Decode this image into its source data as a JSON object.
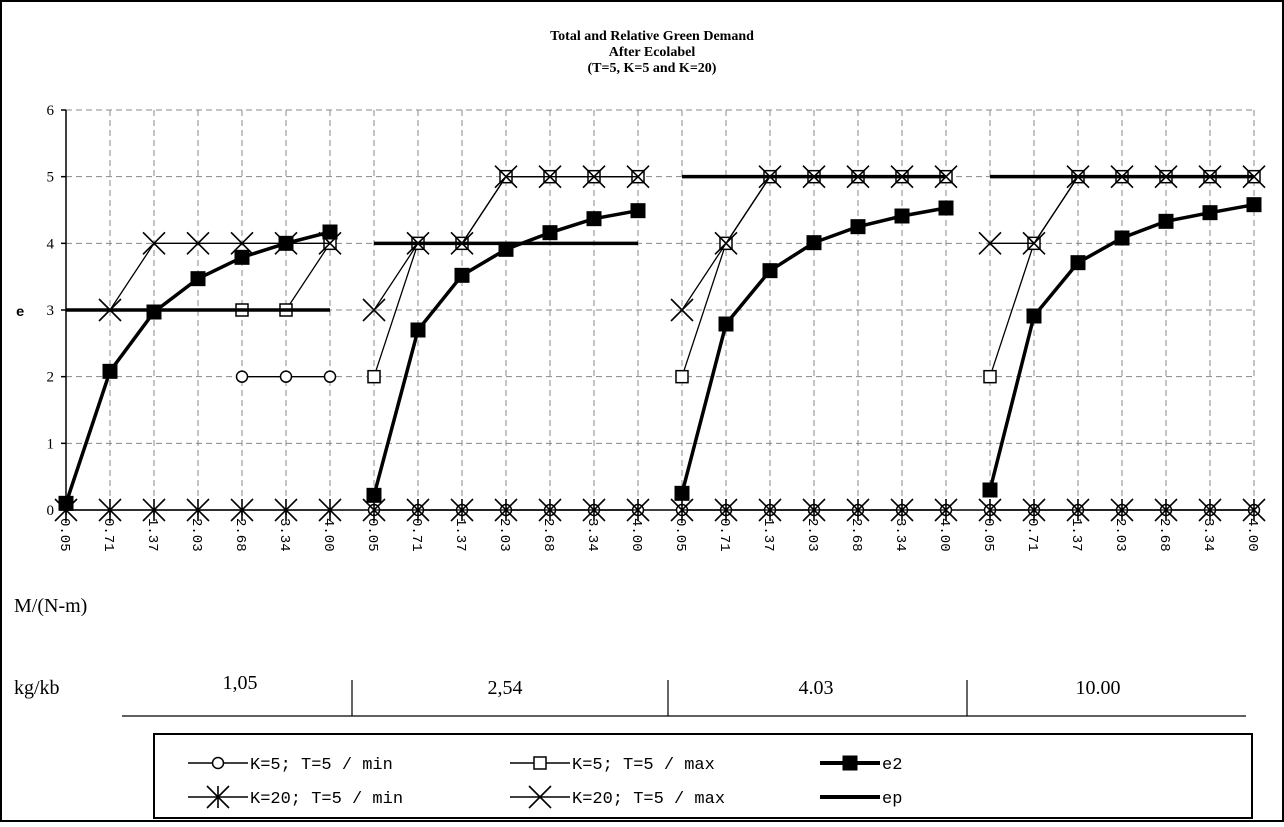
{
  "chart_data": {
    "type": "line",
    "title_lines": [
      "Total and Relative Green Demand",
      "After Ecolabel",
      "(T=5, K=5 and K=20)"
    ],
    "ylabel": "e",
    "xlabel": "M/(N-m)",
    "ylim": [
      0,
      6
    ],
    "yticks": [
      "0",
      "1",
      "2",
      "3",
      "4",
      "5",
      "6"
    ],
    "grid": true,
    "legend_position": "bottom",
    "x_tick_labels": [
      "0.05",
      "0.71",
      "1.37",
      "2.03",
      "2.68",
      "3.34",
      "4.00",
      "0.05",
      "0.71",
      "1.37",
      "2.03",
      "2.68",
      "3.34",
      "4.00",
      "0.05",
      "0.71",
      "1.37",
      "2.03",
      "2.68",
      "3.34",
      "4.00",
      "0.05",
      "0.71",
      "1.37",
      "2.03",
      "2.68",
      "3.34",
      "4.00"
    ],
    "group_axis": {
      "label": "kg/kb",
      "groups": [
        "1,05",
        "2,54",
        "4.03",
        "10.00"
      ]
    },
    "series": [
      {
        "name": "K=5; T=5 / min",
        "marker": "circle",
        "values": [
          [
            null,
            null,
            null,
            null,
            2,
            2,
            2
          ],
          [
            0,
            0,
            0,
            0,
            0,
            0,
            0
          ],
          [
            0,
            0,
            0,
            0,
            0,
            0,
            0
          ],
          [
            0,
            0,
            0,
            0,
            0,
            0,
            0
          ]
        ]
      },
      {
        "name": "K=5; T=5 / max",
        "marker": "square",
        "values": [
          [
            null,
            null,
            null,
            null,
            3,
            3,
            4
          ],
          [
            2,
            4,
            4,
            5,
            5,
            5,
            5
          ],
          [
            2,
            4,
            5,
            5,
            5,
            5,
            5
          ],
          [
            2,
            4,
            5,
            5,
            5,
            5,
            5
          ]
        ]
      },
      {
        "name": "e2",
        "marker": "filled-square",
        "bold": true,
        "values": [
          [
            0.1,
            2.08,
            2.97,
            3.47,
            3.79,
            4.0,
            4.17
          ],
          [
            0.22,
            2.7,
            3.52,
            3.91,
            4.16,
            4.37,
            4.49
          ],
          [
            0.25,
            2.79,
            3.59,
            4.01,
            4.25,
            4.41,
            4.53
          ],
          [
            0.3,
            2.91,
            3.71,
            4.08,
            4.33,
            4.46,
            4.58
          ]
        ]
      },
      {
        "name": "K=20; T=5 / min",
        "marker": "star",
        "values": [
          [
            0,
            0,
            0,
            0,
            0,
            0,
            0
          ],
          [
            0,
            0,
            0,
            0,
            0,
            0,
            0
          ],
          [
            0,
            0,
            0,
            0,
            0,
            0,
            0
          ],
          [
            0,
            0,
            0,
            0,
            0,
            0,
            0
          ]
        ]
      },
      {
        "name": "K=20; T=5 / max",
        "marker": "x",
        "values": [
          [
            null,
            3,
            4,
            4,
            4,
            4,
            4
          ],
          [
            3,
            4,
            4,
            5,
            5,
            5,
            5
          ],
          [
            3,
            4,
            5,
            5,
            5,
            5,
            5
          ],
          [
            4,
            4,
            5,
            5,
            5,
            5,
            5
          ]
        ]
      },
      {
        "name": "ep",
        "marker": "none",
        "bold": true,
        "values": [
          [
            3,
            3,
            3,
            3,
            3,
            3,
            3
          ],
          [
            4,
            4,
            4,
            4,
            4,
            4,
            4
          ],
          [
            5,
            5,
            5,
            5,
            5,
            5,
            5
          ],
          [
            5,
            5,
            5,
            5,
            5,
            5,
            5
          ]
        ]
      }
    ]
  }
}
